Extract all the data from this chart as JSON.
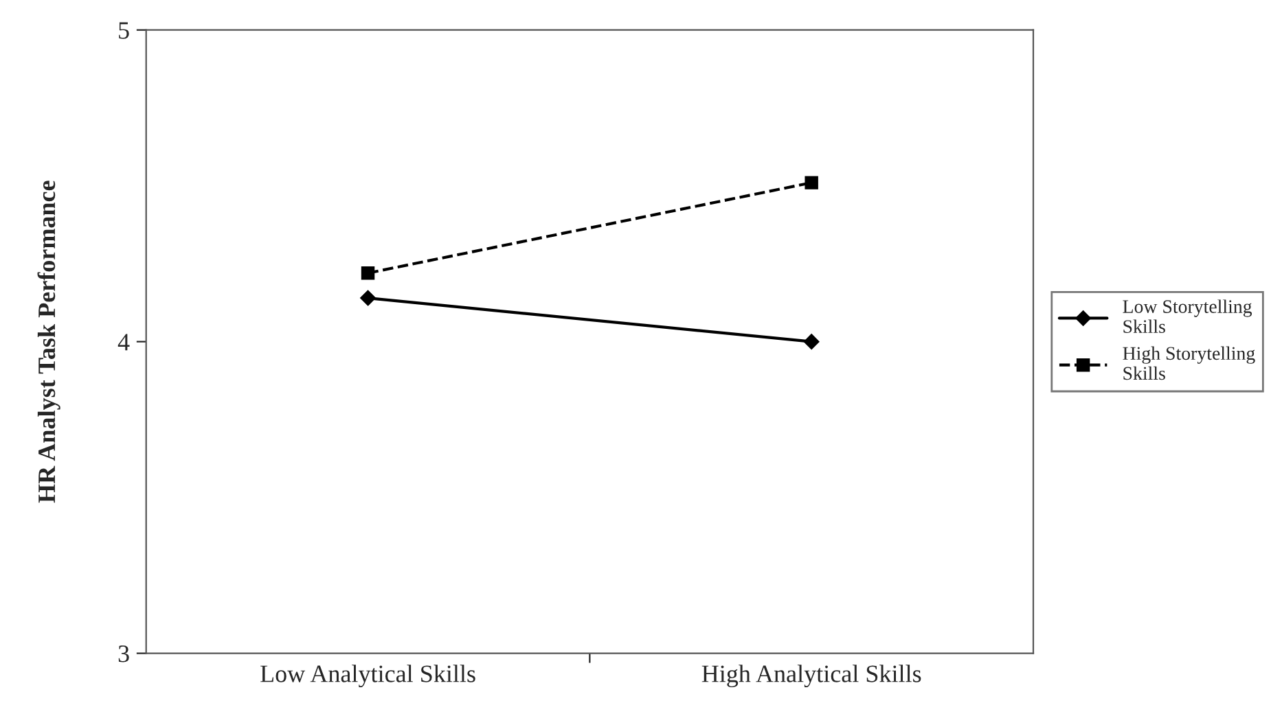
{
  "chart_data": {
    "type": "line",
    "ylabel": "HR Analyst Task Performance",
    "categories": [
      "Low Analytical Skills",
      "High Analytical Skills"
    ],
    "series": [
      {
        "name": "Low Storytelling Skills",
        "color": "#000000",
        "values": [
          4.14,
          4.0
        ],
        "marker": "diamond",
        "line_style": "solid"
      },
      {
        "name": "High Storytelling Skills",
        "color": "#000000",
        "values": [
          4.22,
          4.51
        ],
        "marker": "square",
        "line_style": "dashed"
      }
    ],
    "ylim": [
      3,
      5
    ],
    "yticks": [
      3,
      4,
      5
    ],
    "grid": false,
    "legend": "right"
  }
}
